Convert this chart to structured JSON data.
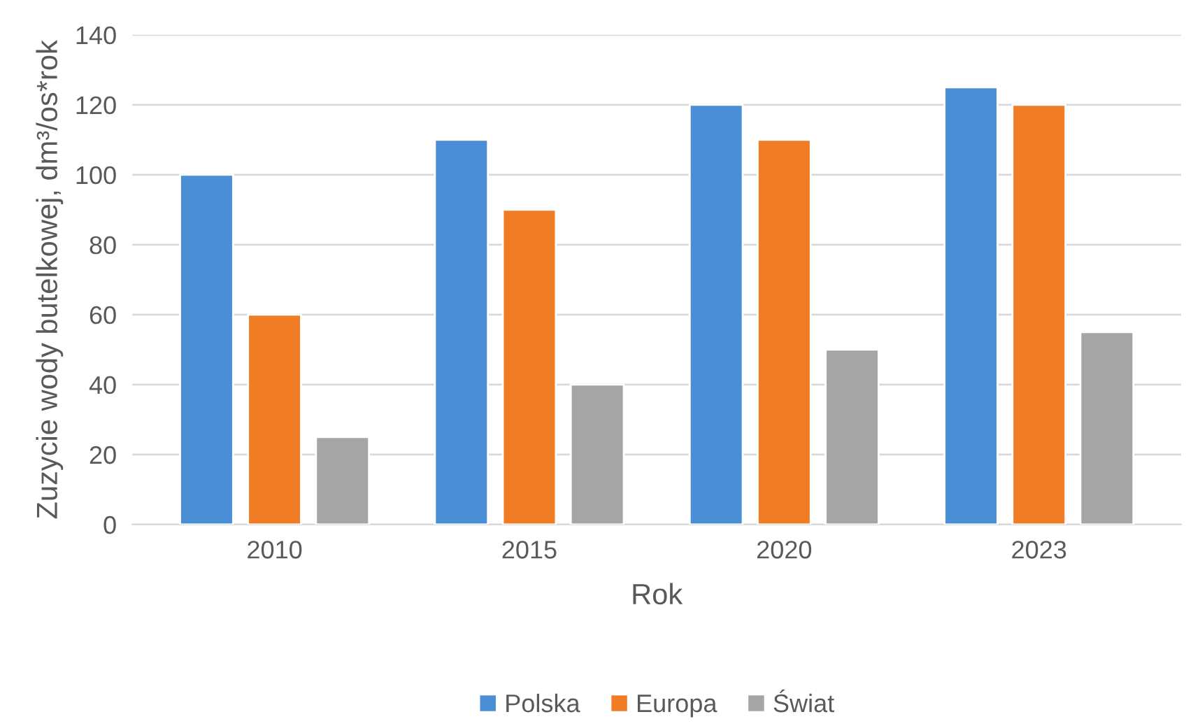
{
  "chart_data": {
    "type": "bar",
    "xlabel": "Rok",
    "ylabel": "Zuzycie wody butelkowej, dm³/os*rok",
    "categories": [
      "2010",
      "2015",
      "2020",
      "2023"
    ],
    "series": [
      {
        "name": "Polska",
        "color": "#4a8ed6",
        "values": [
          100,
          110,
          120,
          125
        ]
      },
      {
        "name": "Europa",
        "color": "#f07d26",
        "values": [
          60,
          90,
          110,
          120
        ]
      },
      {
        "name": "Świat",
        "color": "#a5a5a5",
        "values": [
          25,
          40,
          50,
          55
        ]
      }
    ],
    "ylim": [
      0,
      140
    ],
    "yticks": [
      0,
      20,
      40,
      60,
      80,
      100,
      120,
      140
    ],
    "grid": "y",
    "legend": "bottom"
  }
}
